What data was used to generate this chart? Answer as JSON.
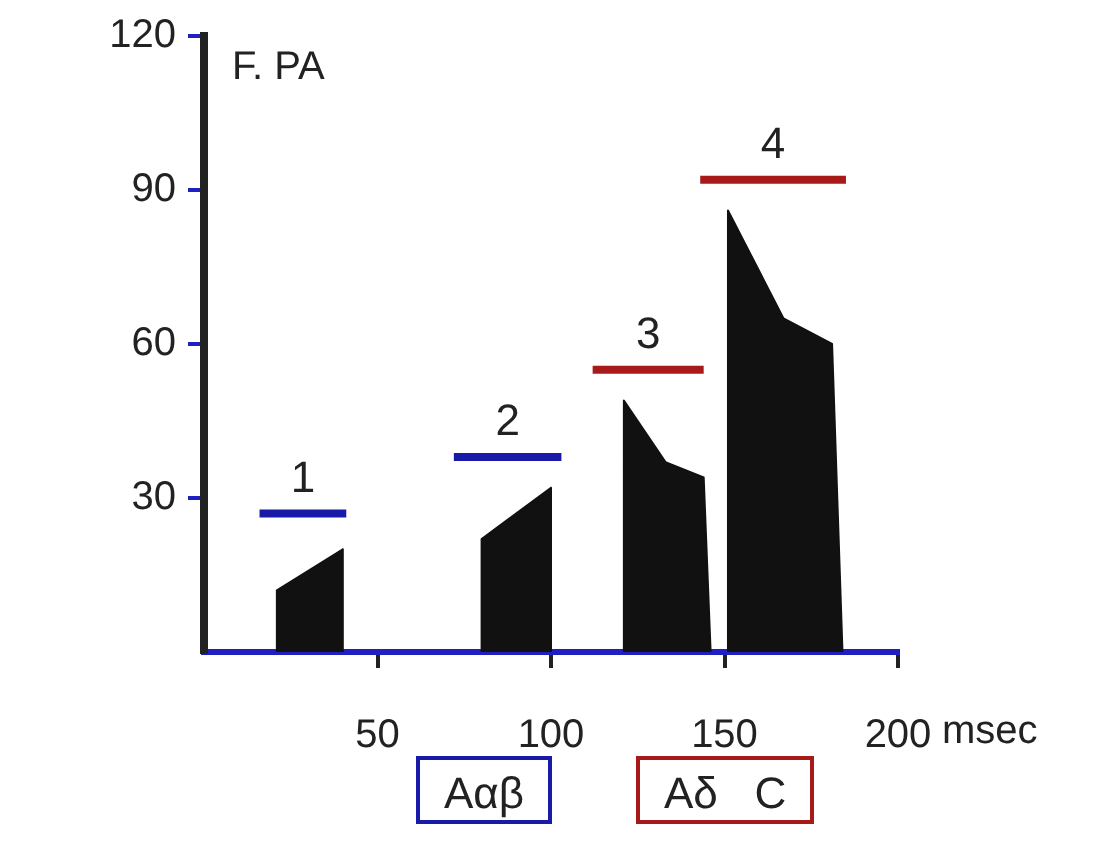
{
  "chart_data": {
    "type": "area",
    "ylabel": "F. PA",
    "xlabel": "msec",
    "xlim": [
      0,
      200
    ],
    "xticks": [
      50,
      100,
      150,
      200
    ],
    "ylim": [
      0,
      120
    ],
    "yticks": [
      30,
      60,
      90,
      120
    ],
    "grid": false,
    "legend": false,
    "series": [
      {
        "color": "#111111",
        "x": [
          21,
          21,
          40,
          40
        ],
        "values": [
          0,
          12,
          20,
          0
        ]
      },
      {
        "color": "#111111",
        "x": [
          80,
          80,
          100,
          100
        ],
        "values": [
          0,
          22,
          32,
          0
        ]
      },
      {
        "color": "#111111",
        "x": [
          121,
          121,
          133,
          144,
          146
        ],
        "values": [
          0,
          49,
          37,
          34,
          0
        ]
      },
      {
        "color": "#111111",
        "x": [
          151,
          151,
          167,
          181,
          184
        ],
        "values": [
          0,
          86,
          65,
          60,
          0
        ]
      },
      {
        "type": "line",
        "name": "1",
        "color": "#1a1aa8",
        "x": [
          16,
          41
        ],
        "values": [
          27,
          27
        ]
      },
      {
        "type": "line",
        "name": "2",
        "color": "#1a1aa8",
        "x": [
          72,
          103
        ],
        "values": [
          38,
          38
        ]
      },
      {
        "type": "line",
        "name": "3",
        "color": "#a81a1a",
        "x": [
          112,
          144
        ],
        "values": [
          55,
          55
        ]
      },
      {
        "type": "line",
        "name": "4",
        "color": "#a81a1a",
        "x": [
          143,
          185
        ],
        "values": [
          92,
          92
        ]
      }
    ],
    "annotations": [
      "Aαβ",
      "Aδ   C"
    ]
  }
}
